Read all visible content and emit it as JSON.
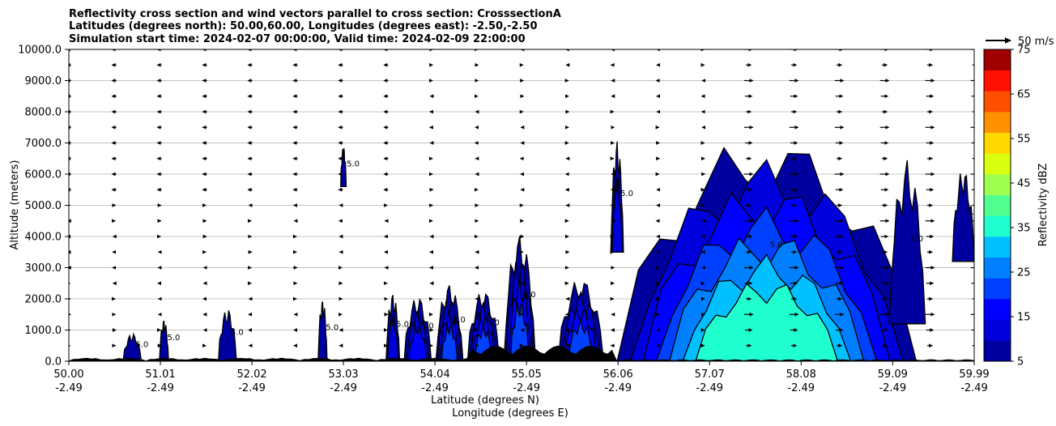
{
  "chart_data": {
    "type": "filled-contour-cross-section",
    "title_lines": [
      "Reflectivity cross section and wind vectors parallel to cross section: CrosssectionA",
      "Latitudes (degrees north): 50.00,60.00, Longitudes (degrees east): -2.50,-2.50",
      "Simulation start time: 2024-02-07 00:00:00, Valid time: 2024-02-09 22:00:00"
    ],
    "xlabel_lines": [
      "Latitude (degrees N)",
      "Longitude (degrees E)"
    ],
    "ylabel": "Altitude (meters)",
    "xlim": [
      50.0,
      59.99
    ],
    "ylim": [
      0,
      10000
    ],
    "x_ticks": [
      {
        "value": 50.0,
        "lat": "50.00",
        "lon": "-2.49"
      },
      {
        "value": 51.01,
        "lat": "51.01",
        "lon": "-2.49"
      },
      {
        "value": 52.02,
        "lat": "52.02",
        "lon": "-2.49"
      },
      {
        "value": 53.03,
        "lat": "53.03",
        "lon": "-2.49"
      },
      {
        "value": 54.04,
        "lat": "54.04",
        "lon": "-2.49"
      },
      {
        "value": 55.05,
        "lat": "55.05",
        "lon": "-2.49"
      },
      {
        "value": 56.06,
        "lat": "56.06",
        "lon": "-2.49"
      },
      {
        "value": 57.07,
        "lat": "57.07",
        "lon": "-2.49"
      },
      {
        "value": 58.08,
        "lat": "58.08",
        "lon": "-2.49"
      },
      {
        "value": 59.09,
        "lat": "59.09",
        "lon": "-2.49"
      },
      {
        "value": 59.99,
        "lat": "59.99",
        "lon": "-2.49"
      }
    ],
    "y_ticks": [
      {
        "value": 0,
        "label": "0.0"
      },
      {
        "value": 1000,
        "label": "1000.0"
      },
      {
        "value": 2000,
        "label": "2000.0"
      },
      {
        "value": 3000,
        "label": "3000.0"
      },
      {
        "value": 4000,
        "label": "4000.0"
      },
      {
        "value": 5000,
        "label": "5000.0"
      },
      {
        "value": 6000,
        "label": "6000.0"
      },
      {
        "value": 7000,
        "label": "7000.0"
      },
      {
        "value": 8000,
        "label": "8000.0"
      },
      {
        "value": 9000,
        "label": "9000.0"
      },
      {
        "value": 10000,
        "label": "10000.0"
      }
    ],
    "grid": "horizontal",
    "colorbar": {
      "label": "Reflectivity dBZ",
      "levels": [
        5,
        10,
        15,
        20,
        25,
        30,
        35,
        40,
        45,
        50,
        55,
        60,
        65,
        70,
        75
      ],
      "colors": [
        "#0000a0",
        "#0000dc",
        "#0000ff",
        "#0040ff",
        "#0080ff",
        "#00c0ff",
        "#20ffd0",
        "#50ff90",
        "#a0ff50",
        "#d8ff10",
        "#ffd800",
        "#ff9000",
        "#ff5000",
        "#ff1000",
        "#a00000"
      ],
      "tick_labels": [
        "5",
        "15",
        "25",
        "35",
        "45",
        "55",
        "65",
        "75"
      ]
    },
    "vector_key": {
      "label": "50 m/s",
      "speed": 50
    },
    "contour_level_labels": [
      "5.0",
      "10.0",
      "15.0",
      "20.0",
      "25.0",
      "30.0"
    ],
    "cells": [
      {
        "x0": 50.6,
        "x1": 50.8,
        "top": 900,
        "peak_dbz": 8
      },
      {
        "x0": 51.0,
        "x1": 51.1,
        "top": 1350,
        "peak_dbz": 8
      },
      {
        "x0": 51.65,
        "x1": 51.85,
        "top": 1700,
        "peak_dbz": 8
      },
      {
        "x0": 52.75,
        "x1": 52.85,
        "top": 2000,
        "peak_dbz": 8
      },
      {
        "x0": 53.0,
        "x1": 53.06,
        "top": 6900,
        "bottom": 5600,
        "peak_dbz": 8
      },
      {
        "x0": 53.5,
        "x1": 53.65,
        "top": 2200,
        "peak_dbz": 12
      },
      {
        "x0": 53.7,
        "x1": 54.0,
        "top": 2100,
        "peak_dbz": 18
      },
      {
        "x0": 54.05,
        "x1": 54.35,
        "top": 2500,
        "peak_dbz": 20
      },
      {
        "x0": 54.4,
        "x1": 54.75,
        "top": 2300,
        "peak_dbz": 20
      },
      {
        "x0": 54.8,
        "x1": 55.15,
        "top": 4100,
        "peak_dbz": 20
      },
      {
        "x0": 55.4,
        "x1": 55.9,
        "top": 2700,
        "peak_dbz": 20
      },
      {
        "x0": 55.98,
        "x1": 56.12,
        "top": 7100,
        "bottom": 3500,
        "peak_dbz": 10
      },
      {
        "x0": 56.05,
        "x1": 59.35,
        "top": 7300,
        "peak_dbz": 35
      },
      {
        "x0": 59.05,
        "x1": 59.45,
        "top": 6500,
        "bottom": 1200,
        "peak_dbz": 8
      },
      {
        "x0": 59.75,
        "x1": 59.99,
        "top": 6200,
        "bottom": 3200,
        "peak_dbz": 8
      }
    ],
    "terrain_max_m": 500
  }
}
